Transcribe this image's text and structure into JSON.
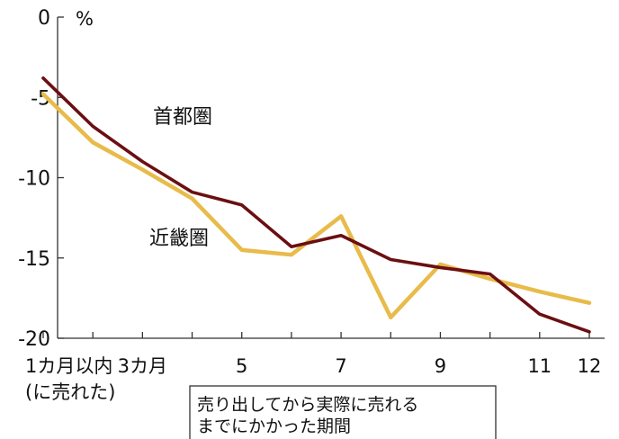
{
  "chart_data": {
    "type": "line",
    "unit": "%",
    "x_note": "(に売れた)",
    "x_caption": [
      "売り出してから実際に売れる",
      "までにかかった期間"
    ],
    "x": [
      1,
      2,
      3,
      4,
      5,
      6,
      7,
      8,
      9,
      10,
      11,
      12
    ],
    "x_tick_labels": [
      {
        "x": 1,
        "text": "1カ月以内"
      },
      {
        "x": 3,
        "text": "3カ月"
      },
      {
        "x": 5,
        "text": "5"
      },
      {
        "x": 7,
        "text": "7"
      },
      {
        "x": 9,
        "text": "9"
      },
      {
        "x": 11,
        "text": "11"
      },
      {
        "x": 12,
        "text": "12"
      }
    ],
    "y_ticks": [
      0,
      -5,
      -10,
      -15,
      -20
    ],
    "ylim": [
      -20,
      0
    ],
    "grid": false,
    "series": [
      {
        "name": "首都圏",
        "color": "#6b0f12",
        "values": [
          -3.8,
          -6.8,
          -9.0,
          -10.9,
          -11.7,
          -14.3,
          -13.6,
          -15.1,
          -15.6,
          -16.0,
          -18.5,
          -19.6
        ]
      },
      {
        "name": "近畿圏",
        "color": "#e8bb4a",
        "values": [
          -4.8,
          -7.8,
          -9.5,
          -11.3,
          -14.5,
          -14.8,
          -12.4,
          -18.7,
          -15.4,
          -16.3,
          -17.1,
          -17.8
        ]
      }
    ]
  }
}
